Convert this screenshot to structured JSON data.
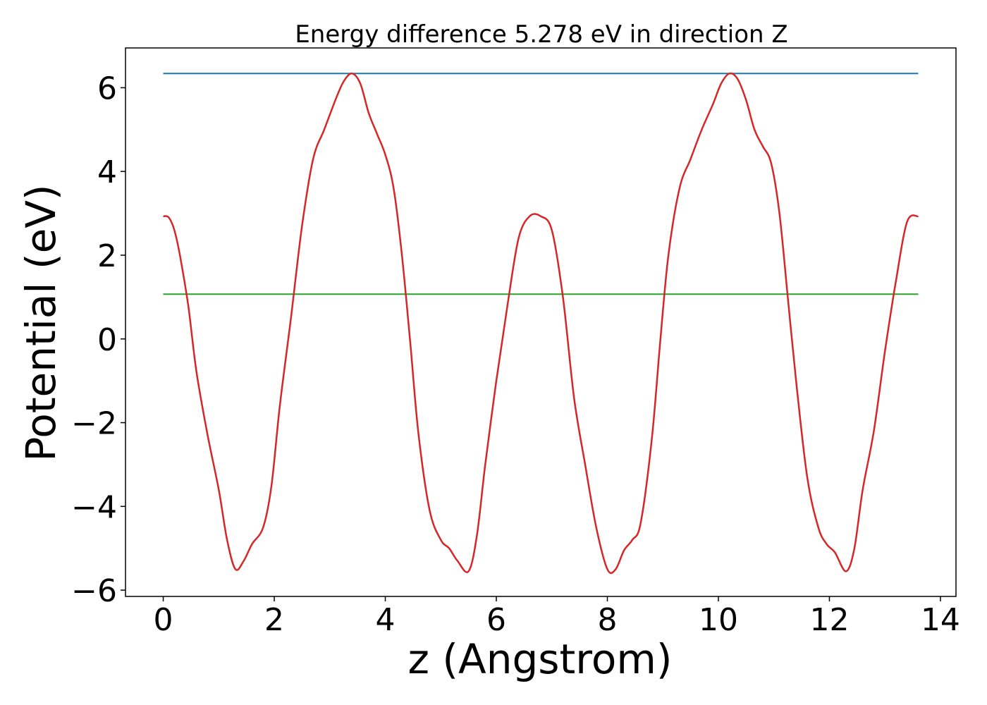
{
  "chart_data": {
    "type": "line",
    "title": "Energy difference 5.278 eV in direction Z",
    "xlabel": "z (Angstrom)",
    "ylabel": "Potential (eV)",
    "xlim": [
      -0.68,
      14.28
    ],
    "ylim": [
      -6.15,
      6.95
    ],
    "xticks": [
      0,
      2,
      4,
      6,
      8,
      10,
      12,
      14
    ],
    "yticks": [
      -6,
      -4,
      -2,
      0,
      2,
      4,
      6
    ],
    "grid": false,
    "series": [
      {
        "color": "#1f77b4",
        "x": [
          0,
          13.6
        ],
        "y": [
          6.34,
          6.34
        ]
      },
      {
        "color": "#2ca02c",
        "x": [
          0,
          13.6
        ],
        "y": [
          1.07,
          1.07
        ]
      },
      {
        "color": "#d62728",
        "x": [
          0,
          0.1,
          0.2,
          0.3,
          0.45,
          0.6,
          0.8,
          1.0,
          1.15,
          1.3,
          1.45,
          1.6,
          1.8,
          1.95,
          2.1,
          2.3,
          2.5,
          2.7,
          2.9,
          3.1,
          3.25,
          3.4,
          3.55,
          3.7,
          3.85,
          4.0,
          4.15,
          4.3,
          4.45,
          4.6,
          4.8,
          5.0,
          5.15,
          5.3,
          5.5,
          5.65,
          5.8,
          6.0,
          6.2,
          6.4,
          6.6,
          6.8,
          7.0,
          7.2,
          7.4,
          7.6,
          7.8,
          8.0,
          8.15,
          8.3,
          8.45,
          8.6,
          8.8,
          8.95,
          9.1,
          9.3,
          9.5,
          9.7,
          9.9,
          10.05,
          10.2,
          10.35,
          10.5,
          10.65,
          10.8,
          10.95,
          11.1,
          11.25,
          11.4,
          11.6,
          11.8,
          11.95,
          12.1,
          12.3,
          12.45,
          12.6,
          12.8,
          13.0,
          13.2,
          13.4,
          13.6
        ],
        "y": [
          2.93,
          2.9,
          2.6,
          2.0,
          0.8,
          -0.8,
          -2.3,
          -3.6,
          -4.8,
          -5.5,
          -5.3,
          -4.9,
          -4.5,
          -3.5,
          -1.6,
          0.5,
          2.7,
          4.3,
          5.0,
          5.7,
          6.15,
          6.34,
          6.1,
          5.4,
          4.9,
          4.4,
          3.6,
          2.0,
          -0.1,
          -2.3,
          -4.1,
          -4.8,
          -5.0,
          -5.3,
          -5.55,
          -4.7,
          -3.0,
          -1.0,
          0.8,
          2.4,
          2.93,
          2.93,
          2.6,
          1.0,
          -1.4,
          -3.0,
          -4.5,
          -5.5,
          -5.5,
          -5.05,
          -4.8,
          -4.4,
          -2.4,
          -0.1,
          2.0,
          3.6,
          4.3,
          5.0,
          5.6,
          6.1,
          6.34,
          6.2,
          5.7,
          5.0,
          4.6,
          4.2,
          3.0,
          1.0,
          -1.0,
          -3.3,
          -4.5,
          -4.9,
          -5.1,
          -5.55,
          -5.0,
          -3.6,
          -2.2,
          -0.3,
          1.4,
          2.8,
          2.93
        ]
      }
    ]
  }
}
